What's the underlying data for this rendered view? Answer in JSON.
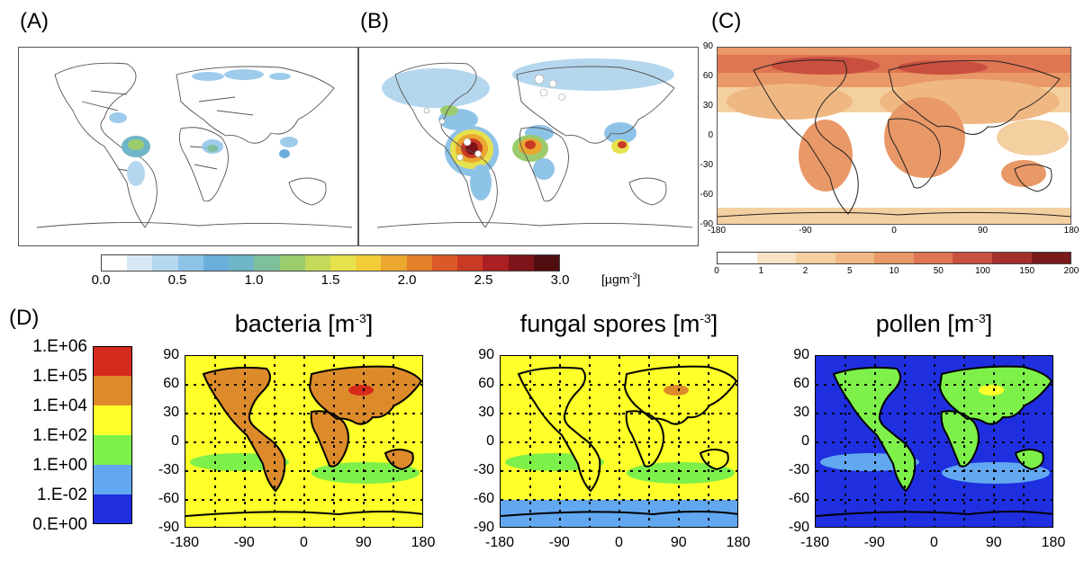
{
  "panels": {
    "a": {
      "label": "(A)"
    },
    "b": {
      "label": "(B)"
    },
    "c": {
      "label": "(C)"
    },
    "d": {
      "label": "(D)"
    }
  },
  "colorbar_ab": {
    "ticks": [
      "0.0",
      "0.5",
      "1.0",
      "1.5",
      "2.0",
      "2.5",
      "3.0"
    ],
    "unit_main": "[µgm",
    "unit_sup": "-3",
    "unit_end": "]",
    "colors": [
      "#ffffff",
      "#d6e8f4",
      "#b5d7ee",
      "#8ec3e8",
      "#6aafdc",
      "#6fb5c8",
      "#7dbf9a",
      "#9ccb6e",
      "#c3d95a",
      "#e6e14d",
      "#f3cc3a",
      "#eba72f",
      "#e47f2a",
      "#da5a27",
      "#c93a25",
      "#a91f22",
      "#7e1419",
      "#4f0d0f"
    ]
  },
  "map_c": {
    "y_ticks": [
      "90",
      "60",
      "30",
      "0",
      "-30",
      "-60",
      "-90"
    ],
    "x_ticks": [
      "-180",
      "-90",
      "0",
      "90",
      "180"
    ],
    "colorbar_ticks": [
      "0",
      "1",
      "2",
      "5",
      "10",
      "50",
      "100",
      "150",
      "200"
    ],
    "colorbar_colors": [
      "#ffffff",
      "#f9e3c4",
      "#f4cfa0",
      "#efb883",
      "#e99868",
      "#de7553",
      "#c9503f",
      "#a4302d",
      "#7a1a1a"
    ]
  },
  "legend_d": {
    "labels": [
      "1.E+06",
      "1.E+05",
      "1.E+04",
      "1.E+02",
      "1.E+00",
      "1.E-02",
      "0.E+00"
    ],
    "colors": [
      "#d42a1c",
      "#dc8a2a",
      "#ffff2a",
      "#7ef04a",
      "#62a8f0",
      "#1f2fe0"
    ]
  },
  "maps_d": [
    {
      "title": "bacteria [m",
      "sup": "-3",
      "end": "]"
    },
    {
      "title": "fungal spores [m",
      "sup": "-3",
      "end": "]"
    },
    {
      "title": "pollen [m",
      "sup": "-3",
      "end": "]"
    }
  ],
  "axes_d": {
    "y_ticks": [
      "90",
      "60",
      "30",
      "0",
      "-30",
      "-60",
      "-90"
    ],
    "x_ticks": [
      "-180",
      "-90",
      "0",
      "90",
      "180"
    ]
  }
}
